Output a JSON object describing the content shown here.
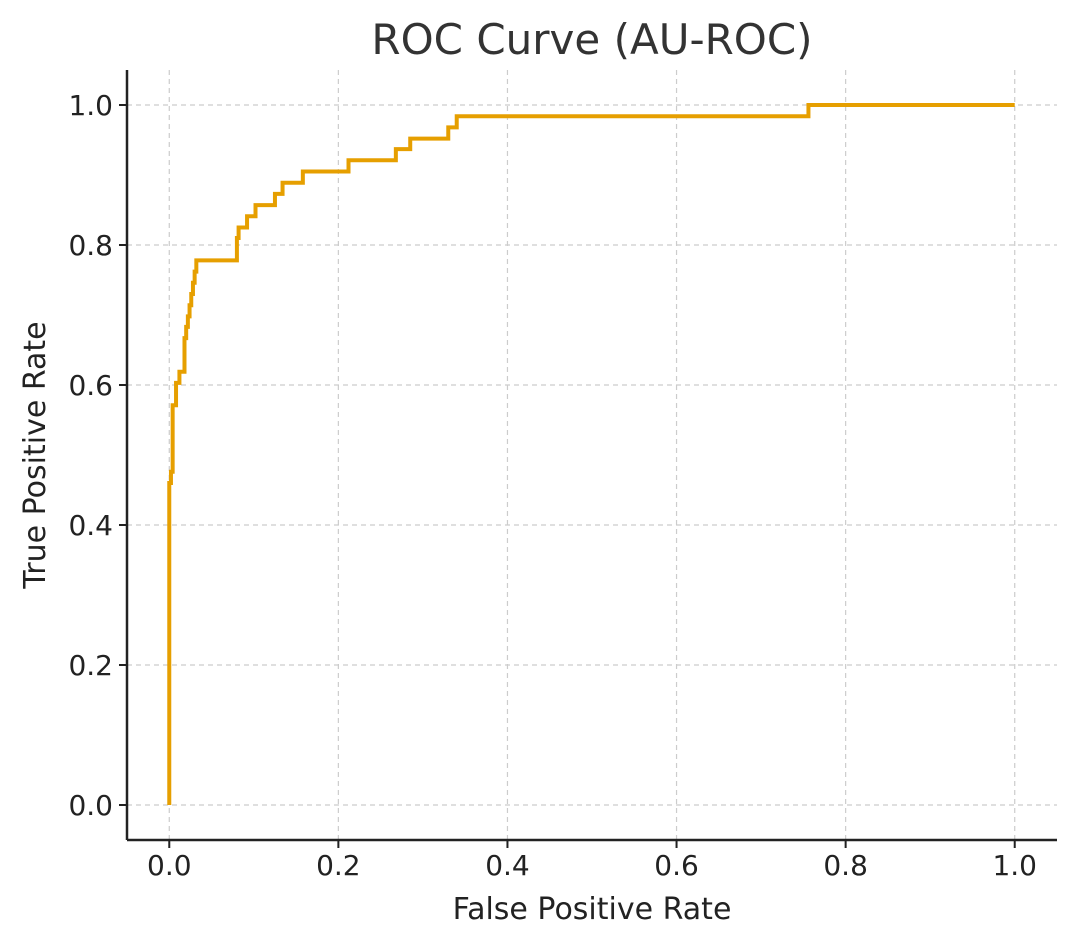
{
  "chart_data": {
    "type": "line",
    "title": "ROC Curve (AU-ROC)",
    "xlabel": "False Positive Rate",
    "ylabel": "True Positive Rate",
    "xlim": [
      -0.05,
      1.05
    ],
    "ylim": [
      -0.05,
      1.05
    ],
    "xticks": [
      0.0,
      0.2,
      0.4,
      0.6,
      0.8,
      1.0
    ],
    "yticks": [
      0.0,
      0.2,
      0.4,
      0.6,
      0.8,
      1.0
    ],
    "xtick_labels": [
      "0.0",
      "0.2",
      "0.4",
      "0.6",
      "0.8",
      "1.0"
    ],
    "ytick_labels": [
      "0.0",
      "0.2",
      "0.4",
      "0.6",
      "0.8",
      "1.0"
    ],
    "grid": true,
    "series": [
      {
        "name": "ROC",
        "color": "#e69f00",
        "step": true,
        "x": [
          0.0,
          0.0,
          0.002,
          0.004,
          0.004,
          0.008,
          0.012,
          0.018,
          0.02,
          0.022,
          0.024,
          0.026,
          0.028,
          0.03,
          0.032,
          0.034,
          0.08,
          0.082,
          0.092,
          0.102,
          0.125,
          0.134,
          0.158,
          0.212,
          0.268,
          0.285,
          0.33,
          0.34,
          0.756,
          1.0
        ],
        "y": [
          0.0,
          0.46,
          0.476,
          0.571,
          0.571,
          0.603,
          0.619,
          0.667,
          0.683,
          0.698,
          0.714,
          0.73,
          0.746,
          0.762,
          0.778,
          0.778,
          0.81,
          0.825,
          0.841,
          0.857,
          0.873,
          0.889,
          0.905,
          0.921,
          0.937,
          0.952,
          0.968,
          0.984,
          1.0,
          1.0
        ]
      }
    ]
  },
  "colors": {
    "background": "#ffffff",
    "axis": "#222222",
    "grid": "#cccccc",
    "text": "#222222",
    "title": "#333333"
  }
}
